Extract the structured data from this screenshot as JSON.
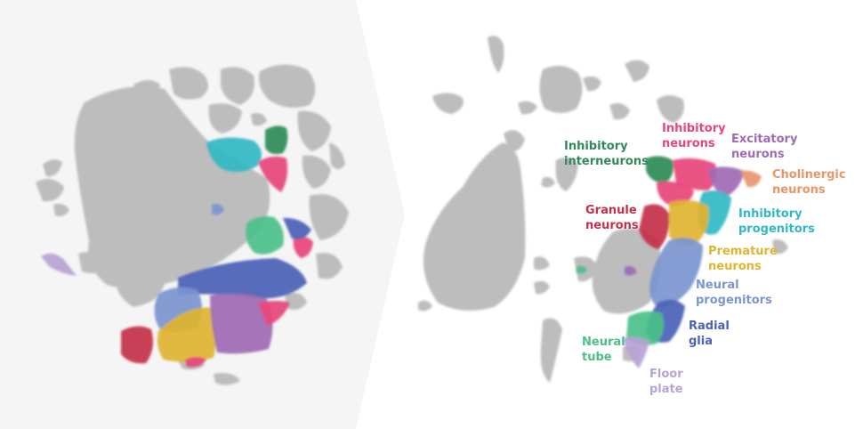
{
  "palette": {
    "gray": "#bdbdbd",
    "panel_bg": "#f5f5f5",
    "inhibitory_interneurons": "#2e8b57",
    "inhibitory_neurons": "#e8457a",
    "excitatory_neurons": "#a06ab4",
    "cholinergic_neurons": "#e8956a",
    "granule_neurons": "#c43048",
    "inhibitory_progenitors": "#30b8c4",
    "premature_neurons": "#e0b430",
    "neural_progenitors": "#7b95cf",
    "radial_glia": "#4a62b6",
    "neural_tube": "#4cc08a",
    "floor_plate": "#b9a2d6"
  },
  "labels": {
    "inhibitory_interneurons": [
      "Inhibitory",
      "interneurons"
    ],
    "inhibitory_neurons": [
      "Inhibitory",
      "neurons"
    ],
    "excitatory_neurons": [
      "Excitatory",
      "neurons"
    ],
    "cholinergic_neurons": [
      "Cholinergic",
      "neurons"
    ],
    "granule_neurons": [
      "Granule",
      "neurons"
    ],
    "inhibitory_progenitors": [
      "Inhibitory",
      "progenitors"
    ],
    "premature_neurons": [
      "Premature",
      "neurons"
    ],
    "neural_progenitors": [
      "Neural",
      "progenitors"
    ],
    "radial_glia": [
      "Radial",
      "glia"
    ],
    "neural_tube": [
      "Neural",
      "tube"
    ],
    "floor_plate": [
      "Floor",
      "plate"
    ]
  }
}
